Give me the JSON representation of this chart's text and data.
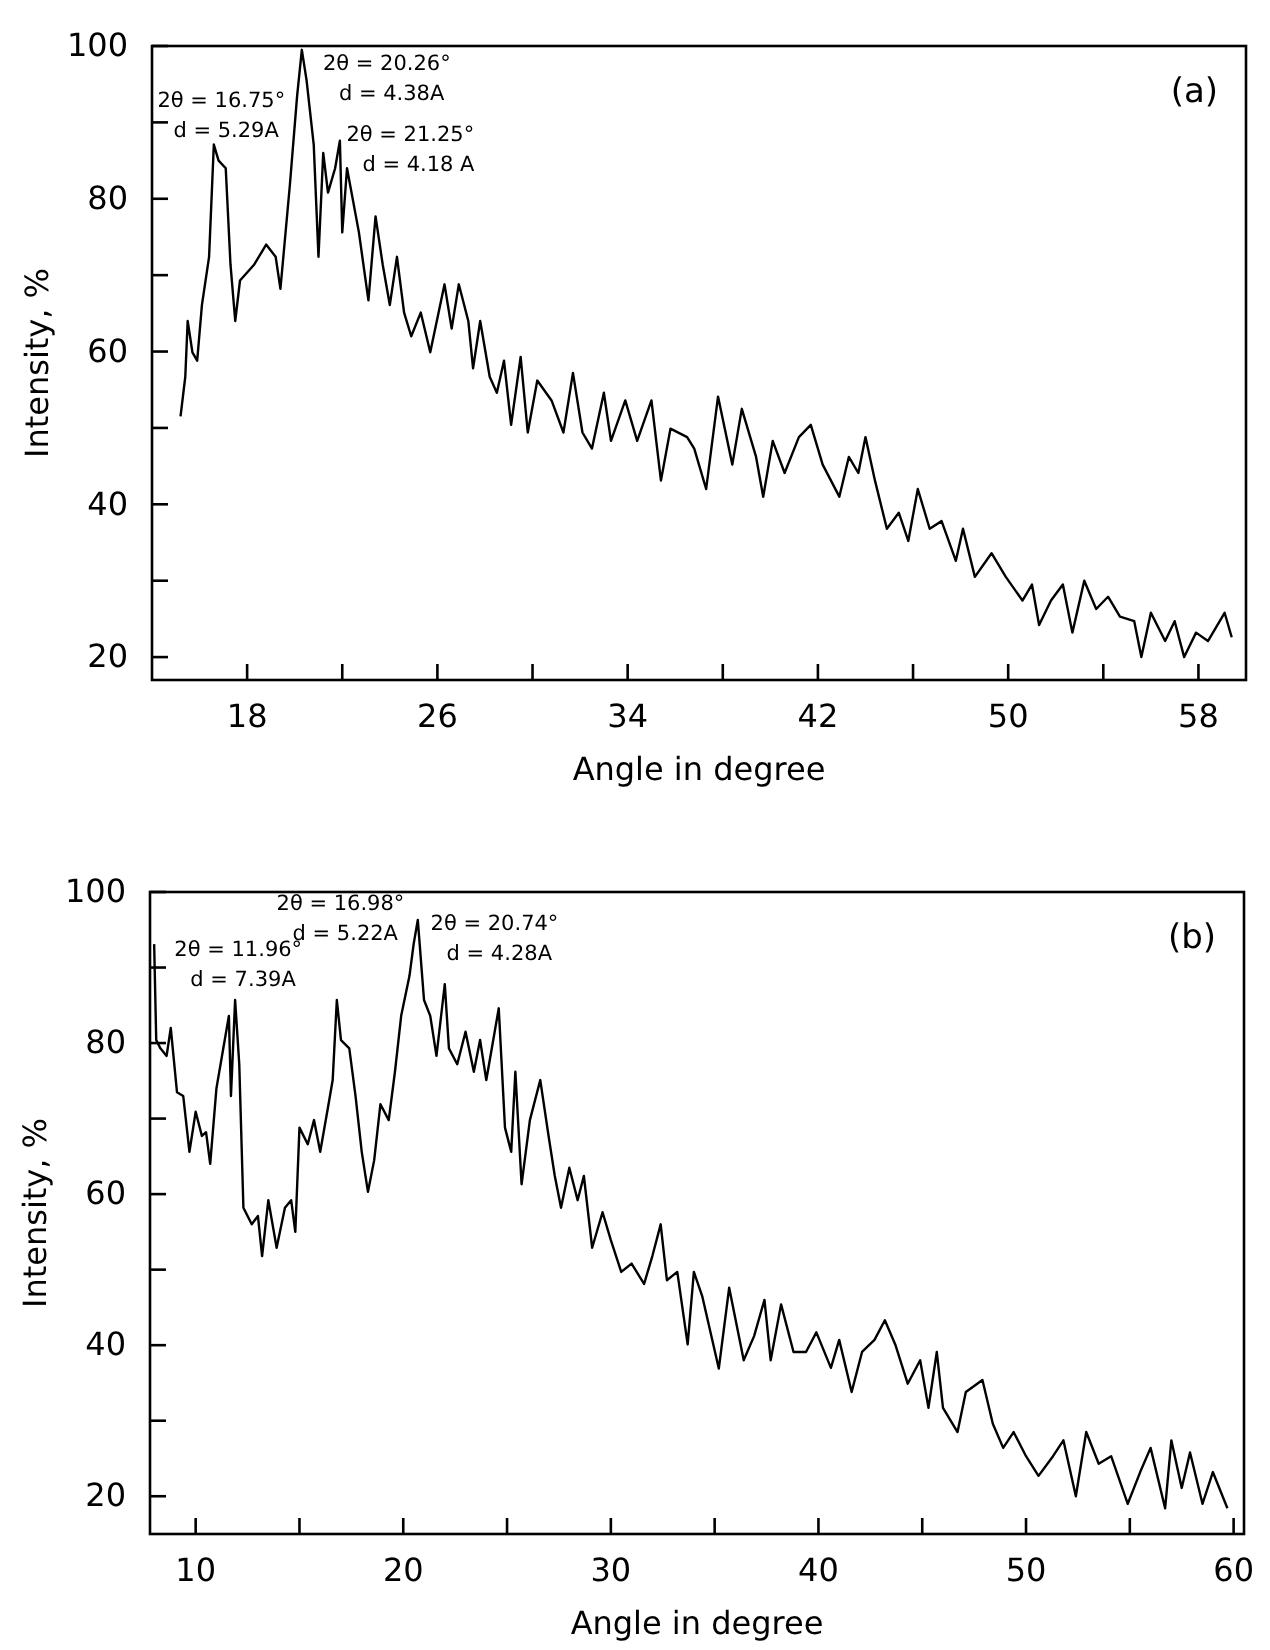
{
  "chart_data": [
    {
      "type": "line",
      "xlabel": "Angle in degree",
      "ylabel": "Intensity, %",
      "xlim": [
        14,
        60
      ],
      "ylim": [
        17,
        100
      ],
      "xticks": [
        18,
        {
          "value": 22,
          "label": null
        },
        26,
        {
          "value": 30,
          "label": null
        },
        34,
        {
          "value": 38,
          "label": null
        },
        42,
        {
          "value": 46,
          "label": null
        },
        50,
        {
          "value": 54,
          "label": null
        },
        58
      ],
      "yticks": [
        20,
        {
          "value": 30,
          "label": null
        },
        40,
        {
          "value": 50,
          "label": null
        },
        60,
        {
          "value": 70,
          "label": null
        },
        80,
        {
          "value": 90,
          "label": null
        },
        100
      ],
      "annotations": [
        "(a)",
        {
          "text": "2θ = 16.75°\nd = 5.29A",
          "x": 16.75,
          "y": 87
        },
        {
          "text": "2θ = 20.26°\nd = 4.38A",
          "x": 20.26,
          "y": 99.5
        },
        {
          "text": "2θ = 21.25°\nd = 4.18 A",
          "x": 21.25,
          "y": 86
        }
      ],
      "series": [
        {
          "color": "#000000",
          "x": [
            15.2,
            15.4,
            15.5,
            15.7,
            15.9,
            16.1,
            16.4,
            16.6,
            16.8,
            17.1,
            17.3,
            17.5,
            17.7,
            18.3,
            18.8,
            19.2,
            19.4,
            19.8,
            20.1,
            20.3,
            20.5,
            20.8,
            21.0,
            21.2,
            21.4,
            21.7,
            21.9,
            22.0,
            22.2,
            22.7,
            23.1,
            23.4,
            23.7,
            24.0,
            24.3,
            24.6,
            24.9,
            25.3,
            25.7,
            26.3,
            26.6,
            26.9,
            27.3,
            27.5,
            27.8,
            28.2,
            28.5,
            28.8,
            29.1,
            29.5,
            29.8,
            30.2,
            30.8,
            31.3,
            31.7,
            32.1,
            32.5,
            33.0,
            33.3,
            33.9,
            34.4,
            35.0,
            35.4,
            35.8,
            36.5,
            36.8,
            37.3,
            37.8,
            38.4,
            38.8,
            39.4,
            39.7,
            40.1,
            40.6,
            41.2,
            41.7,
            42.2,
            42.9,
            43.3,
            43.7,
            44.0,
            44.4,
            44.9,
            45.4,
            45.8,
            46.2,
            46.7,
            47.2,
            47.8,
            48.1,
            48.6,
            49.3,
            49.9,
            50.6,
            51.0,
            51.3,
            51.8,
            52.3,
            52.7,
            53.2,
            53.7,
            54.2,
            54.7,
            55.3,
            55.6,
            56.0,
            56.6,
            57.0,
            57.4,
            57.9,
            58.4,
            59.1,
            59.4
          ],
          "values": [
            51.5,
            56.7,
            64,
            59.9,
            58.8,
            66.1,
            72.4,
            87.1,
            85,
            84,
            71.4,
            64,
            69.3,
            71.4,
            74,
            72.4,
            68.2,
            81.9,
            93.4,
            99.5,
            95.5,
            87.1,
            72.4,
            86,
            80.8,
            84,
            87.6,
            75.6,
            84,
            75.6,
            66.7,
            77.7,
            71.4,
            66.1,
            72.4,
            65.1,
            62,
            65.1,
            59.9,
            68.8,
            63,
            68.8,
            64,
            57.8,
            64,
            56.7,
            54.6,
            58.8,
            50.4,
            59.3,
            49.4,
            56.2,
            53.6,
            49.4,
            57.2,
            49.4,
            47.3,
            54.6,
            48.3,
            53.6,
            48.3,
            53.6,
            43.1,
            49.9,
            48.8,
            47.3,
            42,
            54.1,
            45.2,
            52.5,
            46.2,
            41,
            48.3,
            44.1,
            48.8,
            50.4,
            45.2,
            41,
            46.2,
            44.1,
            48.8,
            43.1,
            36.8,
            38.9,
            35.2,
            42,
            36.8,
            37.8,
            32.6,
            36.8,
            30.5,
            33.6,
            30.5,
            27.4,
            29.5,
            24.2,
            27.4,
            29.5,
            23.2,
            30,
            26.3,
            27.9,
            25.3,
            24.7,
            20,
            25.8,
            22.1,
            24.7,
            20,
            23.2,
            22.1,
            25.8,
            22.6
          ]
        }
      ]
    },
    {
      "type": "line",
      "xlabel": "Angle in degree",
      "ylabel": "Intensity, %",
      "xlim": [
        7.8,
        60.5
      ],
      "ylim": [
        15,
        100
      ],
      "xticks": [
        10,
        {
          "value": 15,
          "label": null
        },
        20,
        {
          "value": 25,
          "label": null
        },
        30,
        {
          "value": 35,
          "label": null
        },
        40,
        {
          "value": 45,
          "label": null
        },
        50,
        {
          "value": 55,
          "label": null
        },
        60
      ],
      "yticks": [
        20,
        {
          "value": 30,
          "label": null
        },
        40,
        {
          "value": 50,
          "label": null
        },
        60,
        {
          "value": 70,
          "label": null
        },
        80,
        {
          "value": 90,
          "label": null
        },
        100
      ],
      "annotations": [
        "(b)",
        {
          "text": "2θ = 11.96°\nd = 7.39A",
          "x": 11.96,
          "y": 85.7
        },
        {
          "text": "2θ = 16.98°\nd = 5.22A",
          "x": 16.98,
          "y": 85.7
        },
        {
          "text": "2θ = 20.74°\nd = 4.28A",
          "x": 20.74,
          "y": 96.3
        }
      ],
      "series": [
        {
          "color": "#000000",
          "x": [
            8.0,
            8.1,
            8.3,
            8.6,
            8.8,
            9.1,
            9.4,
            9.7,
            10.0,
            10.3,
            10.5,
            10.7,
            11.0,
            11.4,
            11.6,
            11.7,
            11.9,
            12.1,
            12.3,
            12.7,
            13.0,
            13.2,
            13.5,
            13.9,
            14.3,
            14.6,
            14.8,
            15.0,
            15.4,
            15.7,
            16.0,
            16.4,
            16.6,
            16.8,
            17.0,
            17.4,
            17.7,
            18.0,
            18.3,
            18.6,
            18.9,
            19.3,
            19.6,
            19.9,
            20.3,
            20.5,
            20.7,
            21.0,
            21.3,
            21.6,
            22.0,
            22.2,
            22.6,
            23.0,
            23.4,
            23.7,
            24.0,
            24.6,
            24.9,
            25.2,
            25.4,
            25.7,
            26.1,
            26.6,
            27.0,
            27.3,
            27.6,
            28.0,
            28.4,
            28.7,
            29.1,
            29.6,
            30.0,
            30.5,
            31.0,
            31.6,
            32.0,
            32.4,
            32.7,
            33.2,
            33.7,
            34.0,
            34.4,
            35.2,
            35.7,
            36.4,
            36.9,
            37.4,
            37.7,
            38.2,
            38.8,
            39.4,
            39.9,
            40.6,
            41.0,
            41.6,
            42.1,
            42.7,
            43.2,
            43.7,
            44.3,
            44.9,
            45.3,
            45.7,
            46.0,
            46.7,
            47.1,
            47.9,
            48.4,
            48.9,
            49.4,
            50.0,
            50.6,
            51.3,
            51.8,
            52.4,
            52.9,
            53.5,
            54.1,
            54.9,
            55.5,
            56.0,
            56.7,
            57.0,
            57.5,
            57.9,
            58.5,
            59.0,
            59.7
          ],
          "values": [
            93.1,
            80.4,
            79.3,
            78.3,
            82,
            73.5,
            73,
            65.6,
            70.9,
            67.7,
            68.2,
            64,
            74,
            80.4,
            83.6,
            73,
            85.7,
            77.2,
            58.2,
            56,
            57.1,
            51.8,
            59.2,
            52.9,
            58.2,
            59.2,
            55,
            68.8,
            66.6,
            69.8,
            65.6,
            71.9,
            75.1,
            85.7,
            80.4,
            79.3,
            73,
            65.6,
            60.3,
            64.5,
            71.9,
            69.8,
            76.2,
            83.6,
            88.9,
            93.1,
            96.3,
            85.7,
            83.6,
            78.3,
            87.8,
            79.3,
            77.2,
            81.5,
            76.2,
            80.4,
            75.1,
            84.6,
            68.8,
            65.6,
            76.2,
            61.3,
            69.8,
            75.1,
            67.7,
            62.4,
            58.2,
            63.5,
            59.2,
            62.4,
            52.9,
            57.6,
            53.9,
            49.7,
            50.8,
            48.1,
            51.8,
            56,
            48.6,
            49.7,
            40.1,
            49.7,
            46.5,
            36.9,
            47.6,
            38,
            41.2,
            46,
            38,
            45.4,
            39.1,
            39.1,
            41.7,
            37,
            40.7,
            33.8,
            39.1,
            40.7,
            43.3,
            40.1,
            34.9,
            38,
            31.7,
            39.1,
            31.7,
            28.5,
            33.8,
            35.4,
            29.6,
            26.4,
            28.5,
            25.3,
            22.7,
            25.3,
            27.4,
            20,
            28.5,
            24.3,
            25.3,
            19,
            23.2,
            26.4,
            18.4,
            27.4,
            21.1,
            25.8,
            19,
            23.2,
            18.4
          ]
        }
      ]
    }
  ]
}
